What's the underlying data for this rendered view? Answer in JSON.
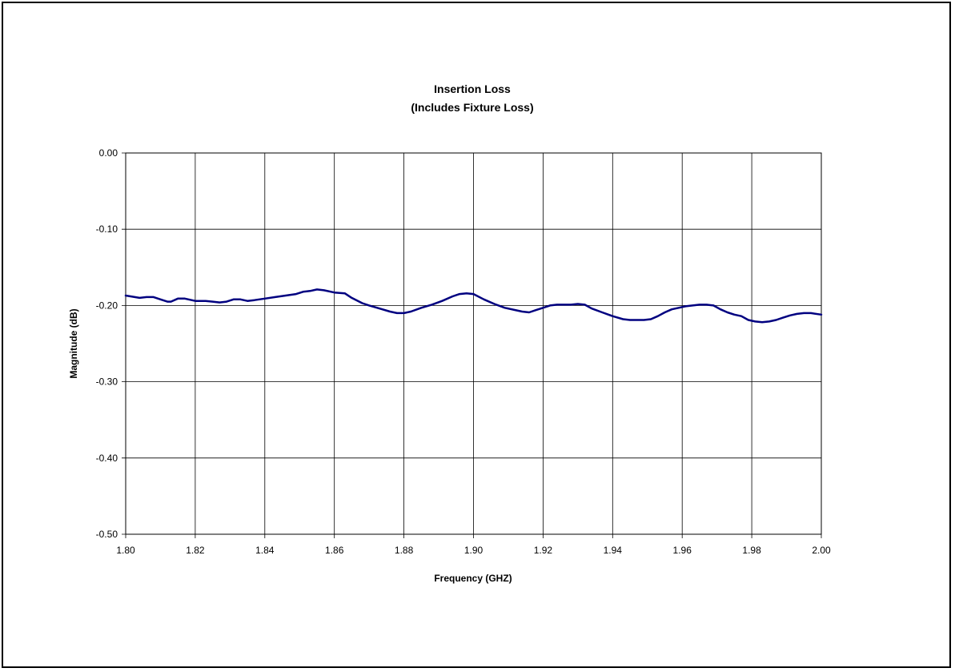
{
  "chart_data": {
    "type": "line",
    "title": "Insertion Loss",
    "subtitle": "(Includes Fixture Loss)",
    "xlabel": "Frequency (GHZ)",
    "ylabel": "Magnitude (dB)",
    "xlim": [
      1.8,
      2.0
    ],
    "ylim": [
      -0.5,
      0.0
    ],
    "x_ticks": [
      "1.80",
      "1.82",
      "1.84",
      "1.86",
      "1.88",
      "1.90",
      "1.92",
      "1.94",
      "1.96",
      "1.98",
      "2.00"
    ],
    "y_ticks": [
      "0.00",
      "-0.10",
      "-0.20",
      "-0.30",
      "-0.40",
      "-0.50"
    ],
    "grid": true,
    "legend": "none",
    "line_color": "#000080",
    "series": [
      {
        "x": [
          1.8,
          1.804,
          1.806,
          1.808,
          1.81,
          1.812,
          1.813,
          1.815,
          1.817,
          1.82,
          1.823,
          1.825,
          1.827,
          1.829,
          1.831,
          1.833,
          1.835,
          1.837,
          1.84,
          1.843,
          1.846,
          1.849,
          1.851,
          1.853,
          1.855,
          1.857,
          1.86,
          1.863,
          1.865,
          1.868,
          1.87,
          1.873,
          1.876,
          1.878,
          1.88,
          1.882,
          1.885,
          1.888,
          1.891,
          1.894,
          1.896,
          1.898,
          1.9,
          1.903,
          1.906,
          1.909,
          1.912,
          1.914,
          1.916,
          1.918,
          1.92,
          1.922,
          1.924,
          1.926,
          1.928,
          1.93,
          1.932,
          1.934,
          1.937,
          1.94,
          1.943,
          1.945,
          1.947,
          1.949,
          1.951,
          1.953,
          1.955,
          1.957,
          1.959,
          1.961,
          1.963,
          1.965,
          1.967,
          1.969,
          1.971,
          1.973,
          1.975,
          1.977,
          1.979,
          1.981,
          1.983,
          1.985,
          1.987,
          1.989,
          1.991,
          1.993,
          1.995,
          1.997,
          2.0
        ],
        "y": [
          -0.187,
          -0.19,
          -0.189,
          -0.189,
          -0.192,
          -0.195,
          -0.195,
          -0.191,
          -0.191,
          -0.194,
          -0.194,
          -0.195,
          -0.196,
          -0.195,
          -0.192,
          -0.192,
          -0.194,
          -0.193,
          -0.191,
          -0.189,
          -0.187,
          -0.185,
          -0.182,
          -0.181,
          -0.179,
          -0.18,
          -0.183,
          -0.184,
          -0.19,
          -0.197,
          -0.2,
          -0.204,
          -0.208,
          -0.21,
          -0.21,
          -0.208,
          -0.203,
          -0.199,
          -0.194,
          -0.188,
          -0.185,
          -0.184,
          -0.185,
          -0.192,
          -0.198,
          -0.203,
          -0.206,
          -0.208,
          -0.209,
          -0.206,
          -0.203,
          -0.2,
          -0.199,
          -0.199,
          -0.199,
          -0.198,
          -0.199,
          -0.204,
          -0.209,
          -0.214,
          -0.218,
          -0.219,
          -0.219,
          -0.219,
          -0.218,
          -0.214,
          -0.209,
          -0.205,
          -0.203,
          -0.201,
          -0.2,
          -0.199,
          -0.199,
          -0.2,
          -0.205,
          -0.209,
          -0.212,
          -0.214,
          -0.219,
          -0.221,
          -0.222,
          -0.221,
          -0.219,
          -0.216,
          -0.213,
          -0.211,
          -0.21,
          -0.21,
          -0.212
        ]
      }
    ]
  }
}
